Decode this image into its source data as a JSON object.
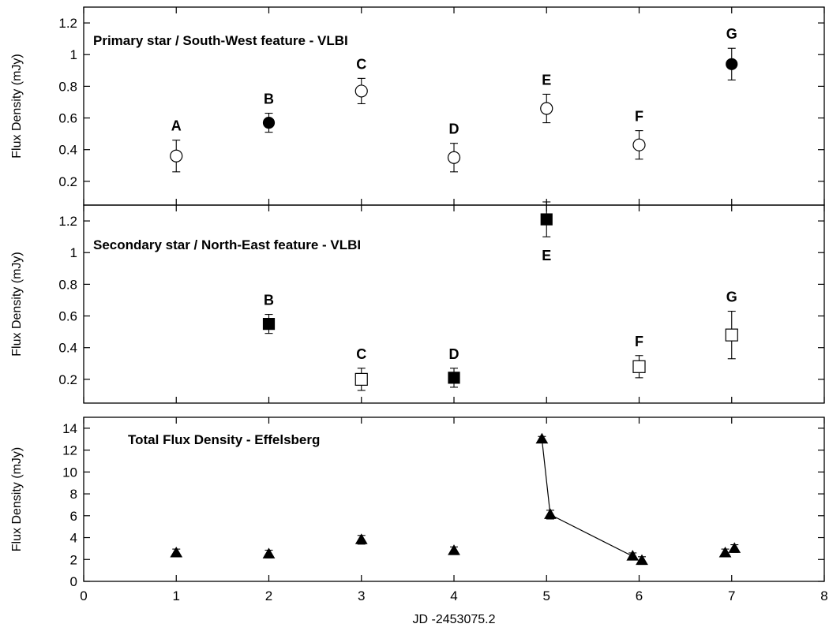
{
  "chart_data": [
    {
      "type": "scatter",
      "panel": "top",
      "title": "Primary star / South-West feature  -  VLBI",
      "ylabel": "Flux Density (mJy)",
      "xlim": [
        0,
        8
      ],
      "ylim": [
        0.05,
        1.3
      ],
      "yticks": [
        0.2,
        0.4,
        0.6,
        0.8,
        1,
        1.2
      ],
      "ytick_labels": [
        "0.2",
        "0.4",
        "0.6",
        "0.8",
        "1",
        "1.2"
      ],
      "points": [
        {
          "label": "A",
          "x": 1,
          "y": 0.36,
          "err": 0.1,
          "filled": false,
          "shape": "circle"
        },
        {
          "label": "B",
          "x": 2,
          "y": 0.57,
          "err": 0.06,
          "filled": true,
          "shape": "circle"
        },
        {
          "label": "C",
          "x": 3,
          "y": 0.77,
          "err": 0.08,
          "filled": false,
          "shape": "circle"
        },
        {
          "label": "D",
          "x": 4,
          "y": 0.35,
          "err": 0.09,
          "filled": false,
          "shape": "circle"
        },
        {
          "label": "E",
          "x": 5,
          "y": 0.66,
          "err": 0.09,
          "filled": false,
          "shape": "circle"
        },
        {
          "label": "F",
          "x": 6,
          "y": 0.43,
          "err": 0.09,
          "filled": false,
          "shape": "circle"
        },
        {
          "label": "G",
          "x": 7,
          "y": 0.94,
          "err": 0.1,
          "filled": true,
          "shape": "circle"
        }
      ]
    },
    {
      "type": "scatter",
      "panel": "middle",
      "title": "Secondary star / North-East feature  -  VLBI",
      "ylabel": "Flux Density (mJy)",
      "xlim": [
        0,
        8
      ],
      "ylim": [
        0.05,
        1.3
      ],
      "yticks": [
        0.2,
        0.4,
        0.6,
        0.8,
        1,
        1.2
      ],
      "ytick_labels": [
        "0.2",
        "0.4",
        "0.6",
        "0.8",
        "1",
        "1.2"
      ],
      "points": [
        {
          "label": "B",
          "x": 2,
          "y": 0.55,
          "err": 0.06,
          "filled": true,
          "shape": "square"
        },
        {
          "label": "C",
          "x": 3,
          "y": 0.2,
          "err": 0.07,
          "filled": false,
          "shape": "square"
        },
        {
          "label": "D",
          "x": 4,
          "y": 0.21,
          "err": 0.06,
          "filled": true,
          "shape": "square"
        },
        {
          "label": "E",
          "x": 5,
          "y": 1.21,
          "err": 0.11,
          "filled": true,
          "shape": "square",
          "label_below": true
        },
        {
          "label": "F",
          "x": 6,
          "y": 0.28,
          "err": 0.07,
          "filled": false,
          "shape": "square"
        },
        {
          "label": "G",
          "x": 7,
          "y": 0.48,
          "err": 0.15,
          "filled": false,
          "shape": "square"
        }
      ]
    },
    {
      "type": "line",
      "panel": "bottom",
      "title": "Total Flux Density  -  Effelsberg",
      "ylabel": "Flux Density (mJy)",
      "xlabel": "JD -2453075.2",
      "xlim": [
        0,
        8
      ],
      "ylim": [
        0,
        15
      ],
      "xticks": [
        0,
        1,
        2,
        3,
        4,
        5,
        6,
        7,
        8
      ],
      "xtick_labels": [
        "0",
        "1",
        "2",
        "3",
        "4",
        "5",
        "6",
        "7",
        "8"
      ],
      "yticks": [
        0,
        2,
        4,
        6,
        8,
        10,
        12,
        14
      ],
      "ytick_labels": [
        "0",
        "2",
        "4",
        "6",
        "8",
        "10",
        "12",
        "14"
      ],
      "points": [
        {
          "x": 1.0,
          "y": 2.6,
          "err": 0.35
        },
        {
          "x": 2.0,
          "y": 2.5,
          "err": 0.35
        },
        {
          "x": 3.0,
          "y": 3.8,
          "err": 0.4
        },
        {
          "x": 4.0,
          "y": 2.8,
          "err": 0.35
        },
        {
          "x": 4.95,
          "y": 13.0,
          "err": 0.25
        },
        {
          "x": 5.04,
          "y": 6.1,
          "err": 0.4
        },
        {
          "x": 5.93,
          "y": 2.3,
          "err": 0.3
        },
        {
          "x": 6.03,
          "y": 1.9,
          "err": 0.35
        },
        {
          "x": 6.93,
          "y": 2.6,
          "err": 0.35
        },
        {
          "x": 7.03,
          "y": 3.0,
          "err": 0.35
        }
      ],
      "connected_segments": [
        [
          4,
          5,
          6
        ]
      ]
    }
  ]
}
